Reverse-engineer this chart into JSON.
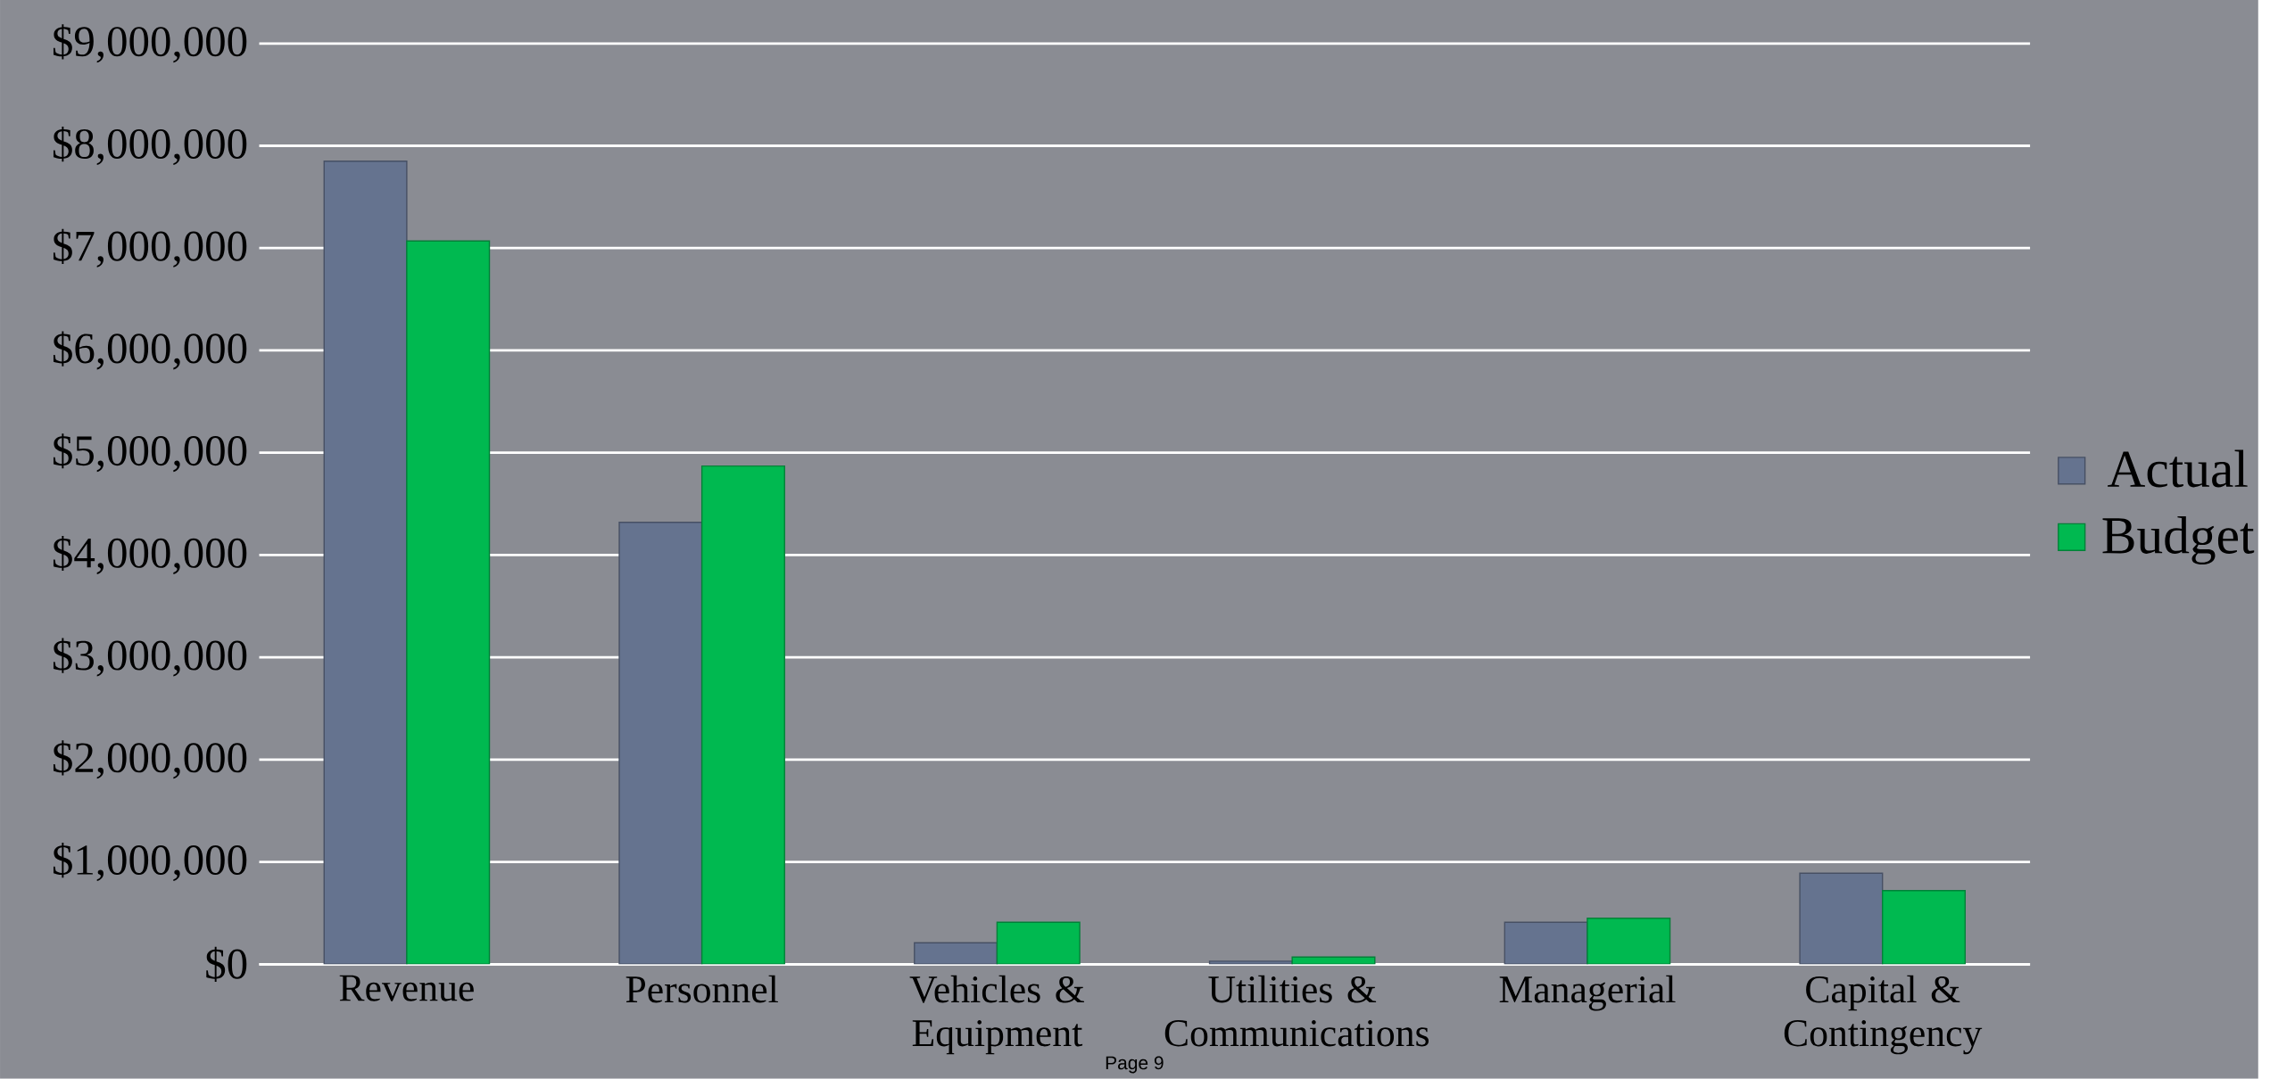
{
  "chart_data": {
    "type": "bar",
    "categories": [
      "Revenue",
      "Personnel",
      "Vehicles & Equipment",
      "Utilities & Communications",
      "Managerial",
      "Capital & Contingency"
    ],
    "series": [
      {
        "name": "Actual",
        "color": "#65738f",
        "values": [
          7850000,
          4320000,
          210000,
          30000,
          410000,
          890000
        ]
      },
      {
        "name": "Budget",
        "color": "#00b950",
        "values": [
          7070000,
          4870000,
          410000,
          70000,
          450000,
          720000
        ]
      }
    ],
    "ylim": [
      0,
      9000000
    ],
    "yticks": [
      {
        "value": 0,
        "label": "$0"
      },
      {
        "value": 1000000,
        "label": "$1,000,000"
      },
      {
        "value": 2000000,
        "label": "$2,000,000"
      },
      {
        "value": 3000000,
        "label": "$3,000,000"
      },
      {
        "value": 4000000,
        "label": "$4,000,000"
      },
      {
        "value": 5000000,
        "label": "$5,000,000"
      },
      {
        "value": 6000000,
        "label": "$6,000,000"
      },
      {
        "value": 7000000,
        "label": "$7,000,000"
      },
      {
        "value": 8000000,
        "label": "$8,000,000"
      },
      {
        "value": 9000000,
        "label": "$9,000,000"
      }
    ],
    "grid": "y",
    "legend": "right",
    "annotations": [
      "Page 9"
    ]
  }
}
